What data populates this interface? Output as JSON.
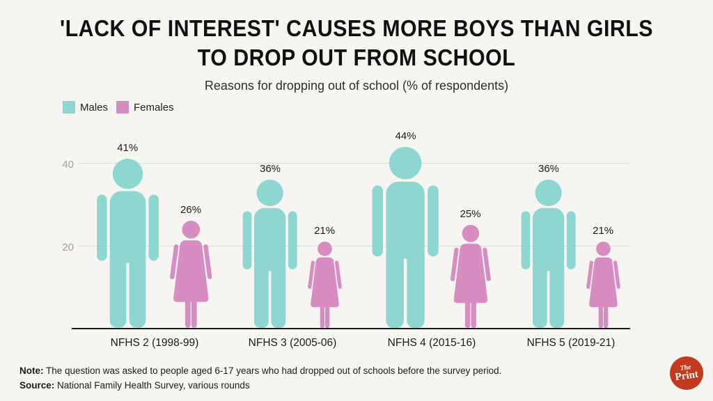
{
  "title": {
    "line1": "'LACK OF INTEREST' CAUSES MORE BOYS THAN GIRLS",
    "line2": "TO DROP OUT FROM SCHOOL"
  },
  "subtitle": "Reasons for dropping out of school (% of respondents)",
  "chart_data": {
    "type": "pictogram-bar",
    "categories": [
      "NFHS 2 (1998-99)",
      "NFHS 3 (2005-06)",
      "NFHS 4 (2015-16)",
      "NFHS 5 (2019-21)"
    ],
    "series": [
      {
        "name": "Males",
        "color": "#8ed6d0",
        "values": [
          41,
          36,
          44,
          36
        ]
      },
      {
        "name": "Females",
        "color": "#d78dc2",
        "values": [
          26,
          21,
          25,
          21
        ]
      }
    ],
    "value_suffix": "%",
    "yticks": [
      20,
      40
    ],
    "ylim": [
      0,
      46
    ],
    "grid": true,
    "legend_position": "top-left"
  },
  "footer": {
    "note_label": "Note:",
    "note_text": " The question was asked to people aged 6-17 years who had dropped out of schools before the survey period.",
    "source_label": "Source:",
    "source_text": " National Family Health Survey, various rounds"
  },
  "logo": {
    "line1": "The",
    "line2": "Print",
    "bg": "#c23b1e"
  }
}
